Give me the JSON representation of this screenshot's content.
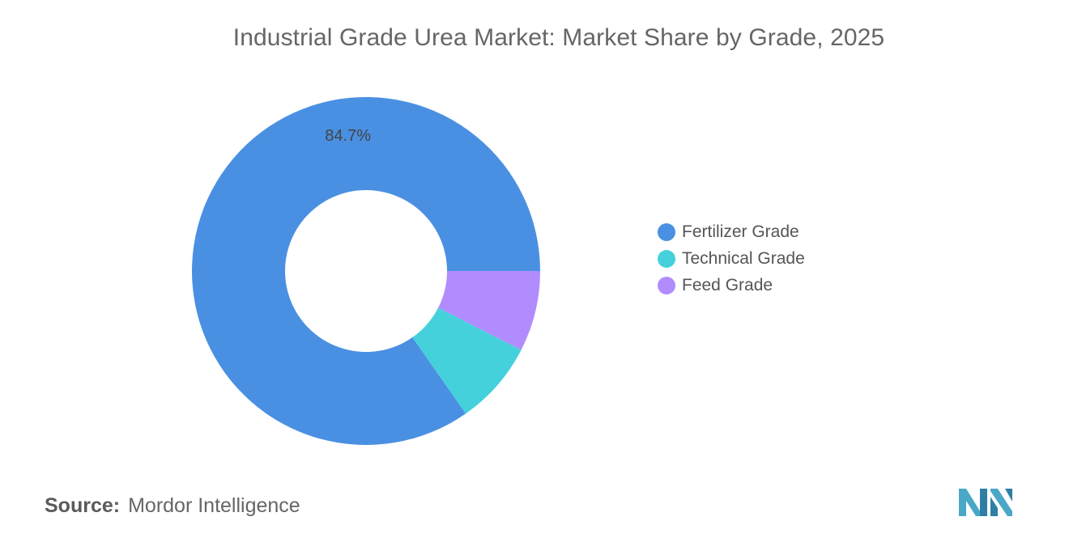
{
  "title": "Industrial Grade Urea Market: Market Share by Grade, 2025",
  "source": {
    "label": "Source:",
    "value": "Mordor Intelligence"
  },
  "logo": {
    "icon": "mordor-intelligence-logo-icon",
    "color": "#4aa8c7"
  },
  "chart_data": {
    "type": "pie",
    "style": "donut",
    "title": "Industrial Grade Urea Market: Market Share by Grade, 2025",
    "categories": [
      "Fertilizer Grade",
      "Technical Grade",
      "Feed Grade"
    ],
    "values": [
      84.7,
      7.8,
      7.5
    ],
    "unit": "%",
    "data_labels": [
      "84.7%",
      "",
      ""
    ],
    "colors": [
      "#4a90e2",
      "#45d1dc",
      "#b08cff"
    ],
    "legend_position": "right"
  }
}
